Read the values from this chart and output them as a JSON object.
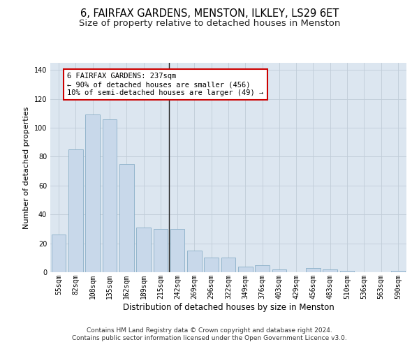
{
  "title": "6, FAIRFAX GARDENS, MENSTON, ILKLEY, LS29 6ET",
  "subtitle": "Size of property relative to detached houses in Menston",
  "xlabel": "Distribution of detached houses by size in Menston",
  "ylabel": "Number of detached properties",
  "categories": [
    "55sqm",
    "82sqm",
    "108sqm",
    "135sqm",
    "162sqm",
    "189sqm",
    "215sqm",
    "242sqm",
    "269sqm",
    "296sqm",
    "322sqm",
    "349sqm",
    "376sqm",
    "403sqm",
    "429sqm",
    "456sqm",
    "483sqm",
    "510sqm",
    "536sqm",
    "563sqm",
    "590sqm"
  ],
  "values": [
    26,
    85,
    109,
    106,
    75,
    31,
    30,
    30,
    15,
    10,
    10,
    4,
    5,
    2,
    0,
    3,
    2,
    1,
    0,
    0,
    1
  ],
  "bar_color": "#c8d8ea",
  "bar_edge_color": "#8aafc8",
  "vline_x_index": 7,
  "vline_color": "#222222",
  "annotation_lines": [
    "6 FAIRFAX GARDENS: 237sqm",
    "← 90% of detached houses are smaller (456)",
    "10% of semi-detached houses are larger (49) →"
  ],
  "annotation_box_facecolor": "#ffffff",
  "annotation_box_edgecolor": "#cc0000",
  "ylim": [
    0,
    145
  ],
  "yticks": [
    0,
    20,
    40,
    60,
    80,
    100,
    120,
    140
  ],
  "grid_color": "#c0ccd8",
  "plot_bg_color": "#dce6f0",
  "figure_bg_color": "#ffffff",
  "footer_line1": "Contains HM Land Registry data © Crown copyright and database right 2024.",
  "footer_line2": "Contains public sector information licensed under the Open Government Licence v3.0.",
  "title_fontsize": 10.5,
  "subtitle_fontsize": 9.5,
  "xlabel_fontsize": 8.5,
  "ylabel_fontsize": 8,
  "tick_fontsize": 7,
  "annotation_fontsize": 7.5,
  "footer_fontsize": 6.5
}
